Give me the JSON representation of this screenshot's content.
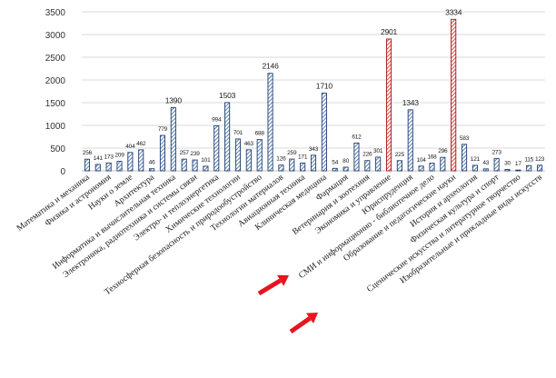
{
  "chart_data": {
    "type": "bar",
    "title": "",
    "xlabel": "",
    "ylabel": "",
    "ylim": [
      0,
      3500
    ],
    "yticks": [
      0,
      500,
      1000,
      1500,
      2000,
      2500,
      3000,
      3500
    ],
    "grid": true,
    "legend": "none",
    "colors": {
      "normal_outline": "#1f3f6e",
      "normal_hatch": "#4a72b0",
      "highlight_outline": "#a01414",
      "highlight_hatch": "#e03030",
      "arrow": "#e8141e",
      "grid": "#d9d9d9",
      "axis": "#bfbfbf"
    },
    "categories": [
      "Математика и механика",
      "",
      "Физика и астрономия",
      "",
      "Науки о земле",
      "",
      "Архитектура",
      "",
      "Информатика и вычислительная техника",
      "",
      "Электроника, радиотехника и системы связи",
      "",
      "Электро- и теплоэнергетика",
      "",
      "Химические технологии",
      "",
      "Техносферная безопасность и природообустройство",
      "",
      "Технологии материалов",
      "",
      "Авиационная техника",
      "",
      "Клиническая медицина",
      "",
      "Фармация",
      "",
      "Ветеринария и зоотехния",
      "",
      "Экономика и управление",
      "",
      "Юриспруденция",
      "",
      "СМИ и информационно - библиотечное дело",
      "",
      "Образование и педагогические науки",
      "",
      "История и археология",
      "",
      "Физическая культура и спорт",
      "",
      "Сценические искусства и литературное творчество",
      "",
      "Изобразительные и прикладные виды искусств"
    ],
    "values": [
      256,
      141,
      173,
      209,
      404,
      462,
      46,
      779,
      1390,
      257,
      239,
      101,
      994,
      1503,
      701,
      463,
      688,
      2146,
      126,
      259,
      171,
      343,
      1710,
      54,
      80,
      612,
      226,
      301,
      2901,
      225,
      1343,
      104,
      168,
      296,
      3334,
      583,
      121,
      43,
      273,
      30,
      17,
      115,
      123
    ],
    "value_labels": [
      "256",
      "141",
      "173",
      "209",
      "404",
      "462",
      "46",
      "779",
      "1390",
      "257",
      "239",
      "101",
      "994",
      "1503",
      "701",
      "463",
      "688",
      "2146",
      "126",
      "259",
      "171",
      "343",
      "1710",
      "54",
      "80",
      "612",
      "226",
      "301",
      "2901",
      "225",
      "1343",
      "104",
      "168",
      "296",
      "3334",
      "583",
      "121",
      "43",
      "273",
      "30",
      "17",
      "115",
      "123"
    ],
    "highlighted": [
      28,
      34
    ],
    "arrows_point_to": [
      "Экономика и управление",
      "Образование и педагогические науки"
    ]
  }
}
